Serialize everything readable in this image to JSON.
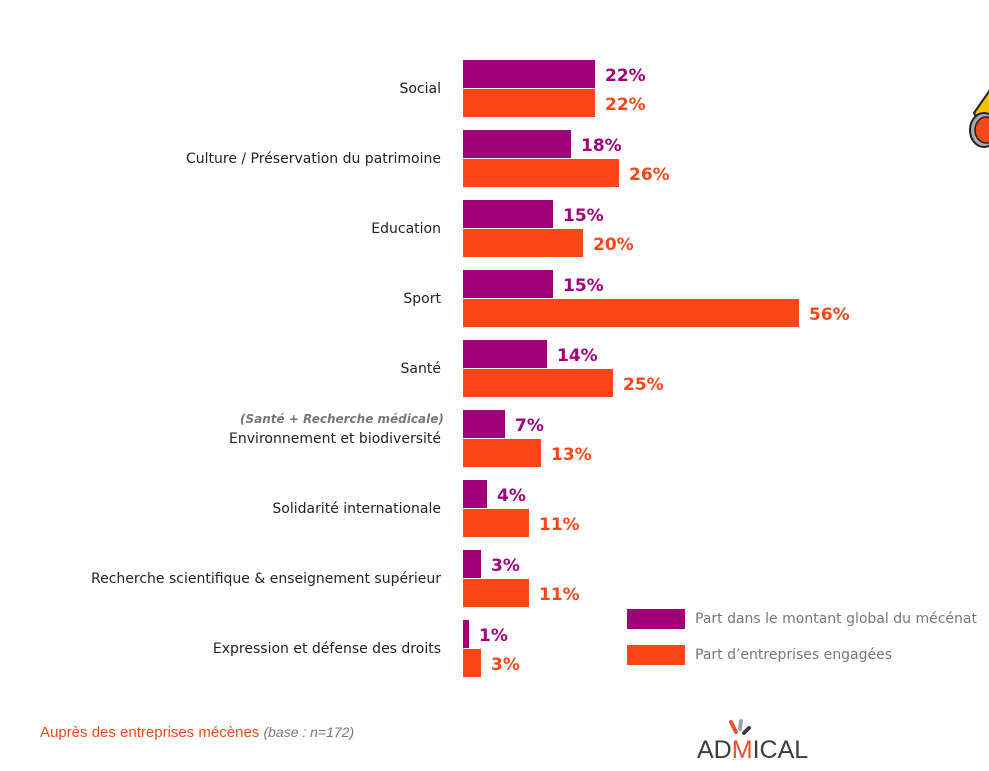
{
  "chart_data": {
    "type": "bar",
    "orientation": "horizontal",
    "categories": [
      "Social",
      "Culture / Préservation du patrimoine",
      "Education",
      "Sport",
      "Santé",
      "Environnement et biodiversité",
      "Solidarité internationale",
      "Recherche scientifique & enseignement supérieur",
      "Expression et défense des droits"
    ],
    "series": [
      {
        "name": "Part dans le montant global du mécénat",
        "color": "#a0007a",
        "values": [
          22,
          18,
          15,
          15,
          14,
          7,
          4,
          3,
          1
        ]
      },
      {
        "name": "Part d’entreprises engagées",
        "color": "#fa4616",
        "values": [
          22,
          26,
          20,
          56,
          25,
          13,
          11,
          11,
          3
        ]
      }
    ],
    "value_suffix": "%",
    "annotation": "(Santé + Recherche médicale)",
    "legend_position": "bottom-right",
    "grid": false
  },
  "footer": {
    "text": "Auprès des entreprises mécènes",
    "base": "(base : n=172)"
  },
  "logo": {
    "text": "ADMICAL"
  }
}
